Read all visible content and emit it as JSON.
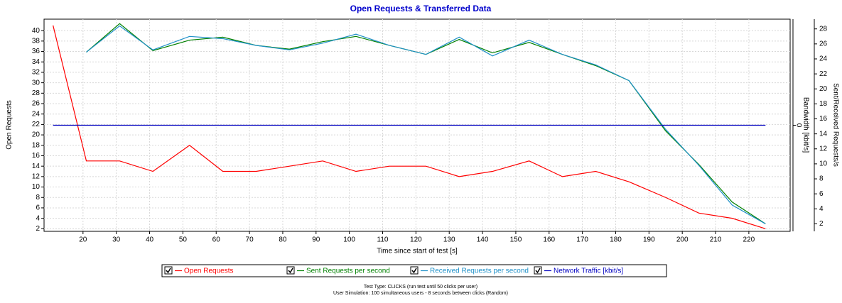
{
  "chart_data": {
    "type": "line",
    "title": "Open Requests & Transferred Data",
    "x_label": "Time since start of test [s]",
    "y_label": "Open Requests",
    "y2_label": "Sent/Received Requests/s",
    "y3_label": "Bandwidth [kbit/s]",
    "x": [
      11,
      21,
      31,
      41,
      52,
      62,
      72,
      82,
      92,
      102,
      112,
      123,
      133,
      143,
      154,
      164,
      174,
      184,
      195,
      205,
      215,
      225
    ],
    "xlim": [
      8.3,
      232.4
    ],
    "xticks": [
      20,
      30,
      40,
      50,
      60,
      70,
      80,
      90,
      100,
      110,
      120,
      130,
      140,
      150,
      160,
      170,
      180,
      190,
      200,
      210,
      220
    ],
    "ylim": [
      1.5,
      42.2
    ],
    "yticks": [
      2,
      4,
      6,
      8,
      10,
      12,
      14,
      16,
      18,
      20,
      22,
      24,
      26,
      28,
      30,
      32,
      34,
      36,
      38,
      40
    ],
    "y2lim": [
      1,
      29.3
    ],
    "y2ticks": [
      2,
      4,
      6,
      8,
      10,
      12,
      14,
      16,
      18,
      20,
      22,
      24,
      26,
      28
    ],
    "y3lim": [
      -1,
      1
    ],
    "y3ticks": [
      0
    ],
    "grid": true,
    "series": [
      {
        "name": "Open Requests",
        "color": "#ff0000",
        "axis": "y",
        "values": [
          41,
          15,
          15,
          13,
          18,
          13,
          13,
          14,
          15,
          13,
          14,
          14,
          12,
          13,
          15,
          12,
          13,
          11,
          8,
          5,
          4,
          2
        ]
      },
      {
        "name": "Sent Requests per second",
        "color": "#008000",
        "axis": "y2",
        "values": [
          null,
          24.9,
          28.7,
          25.1,
          26.5,
          26.9,
          25.8,
          25.3,
          26.3,
          27,
          25.8,
          24.6,
          26.6,
          24.8,
          26.2,
          24.6,
          23.1,
          21.1,
          14.4,
          9.9,
          4.9,
          2
        ]
      },
      {
        "name": "Received Requests per second",
        "color": "#1e90c8",
        "axis": "y2",
        "values": [
          null,
          24.9,
          28.4,
          25.2,
          27,
          26.7,
          25.8,
          25.2,
          26.1,
          27.3,
          25.8,
          24.6,
          26.9,
          24.4,
          26.5,
          24.6,
          23.2,
          21.1,
          14.6,
          9.8,
          4.5,
          2
        ]
      },
      {
        "name": "Network Traffic [kbit/s]",
        "color": "#0000c0",
        "axis": "y3",
        "values": [
          0,
          0,
          0,
          0,
          0,
          0,
          0,
          0,
          0,
          0,
          0,
          0,
          0,
          0,
          0,
          0,
          0,
          0,
          0,
          0,
          0,
          0
        ]
      }
    ],
    "notes": [
      "Test Type: CLICKS (run test until 50 clicks per user)",
      "User Simulation: 100 simultaneous users - 8 seconds between clicks (Random)"
    ]
  }
}
